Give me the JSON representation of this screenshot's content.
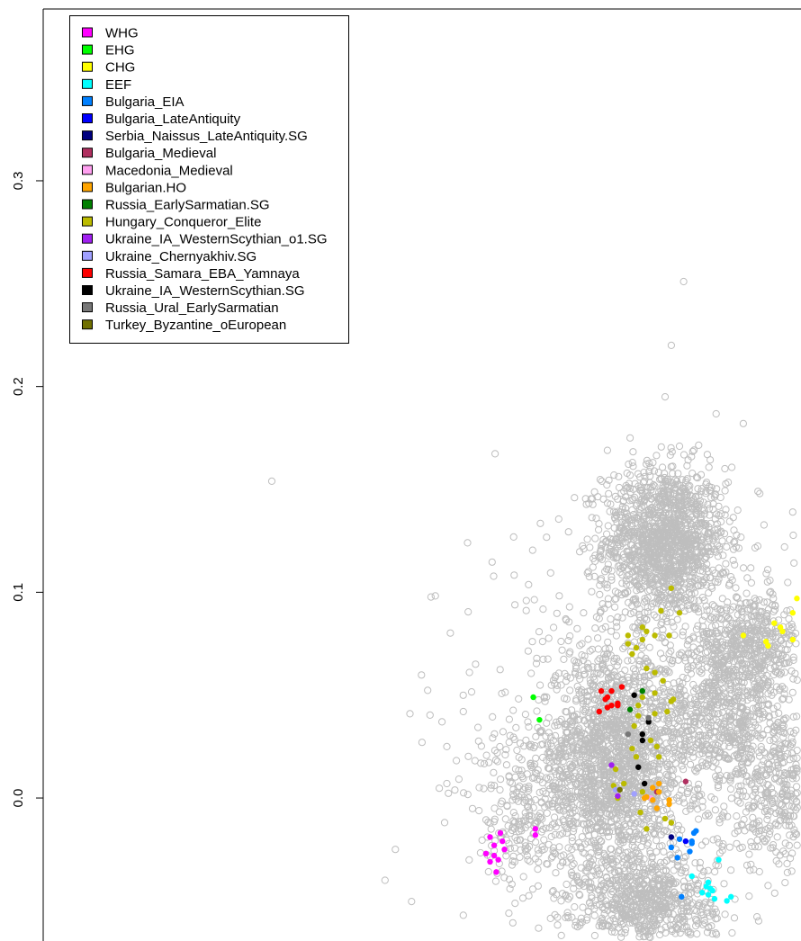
{
  "chart_data": {
    "type": "scatter",
    "title": "",
    "xlabel": "",
    "ylabel": "",
    "ylim": [
      -0.0695,
      0.3835
    ],
    "xlim": [
      0.0,
      0.368
    ],
    "y_ticks": [
      {
        "value": 0.0,
        "label": "0.0"
      },
      {
        "value": 0.1,
        "label": "0.1"
      },
      {
        "value": 0.2,
        "label": "0.2"
      },
      {
        "value": 0.3,
        "label": "0.3"
      }
    ],
    "grid": false,
    "legend_position": "top-left",
    "background_series": {
      "name": "reference samples",
      "color": "#BEBEBE",
      "marker": "open-circle",
      "clusters": [
        {
          "x": 0.302,
          "y": 0.125,
          "sx": 0.015,
          "sy": 0.018,
          "n": 1400
        },
        {
          "x": 0.276,
          "y": 0.016,
          "sx": 0.018,
          "sy": 0.028,
          "n": 1800
        },
        {
          "x": 0.294,
          "y": -0.052,
          "sx": 0.016,
          "sy": 0.012,
          "n": 700
        },
        {
          "x": 0.342,
          "y": 0.075,
          "sx": 0.014,
          "sy": 0.012,
          "n": 500
        },
        {
          "x": 0.33,
          "y": 0.04,
          "sx": 0.016,
          "sy": 0.018,
          "n": 600
        },
        {
          "x": 0.36,
          "y": 0.003,
          "sx": 0.018,
          "sy": 0.02,
          "n": 500
        },
        {
          "x": 0.233,
          "y": -0.008,
          "sx": 0.013,
          "sy": 0.022,
          "n": 220
        },
        {
          "x": 0.3,
          "y": 0.04,
          "sx": 0.055,
          "sy": 0.05,
          "n": 350
        }
      ],
      "outliers": [
        [
          0.133,
          0.356
        ],
        [
          0.111,
          0.154
        ],
        [
          0.311,
          0.251
        ],
        [
          0.305,
          0.22
        ],
        [
          0.302,
          0.195
        ],
        [
          0.34,
          0.182
        ],
        [
          0.309,
          0.171
        ],
        [
          0.274,
          0.169
        ],
        [
          0.285,
          0.175
        ],
        [
          0.258,
          0.146
        ],
        [
          0.207,
          0.061
        ],
        [
          0.204,
          0.042
        ],
        [
          0.196,
          0.025
        ],
        [
          0.196,
          0.007
        ],
        [
          0.171,
          -0.025
        ],
        [
          0.166,
          -0.04
        ],
        [
          0.204,
          -0.057
        ],
        [
          0.364,
          0.139
        ],
        [
          0.36,
          0.122
        ],
        [
          0.348,
          0.148
        ]
      ]
    },
    "series": [
      {
        "name": "WHG",
        "color": "#FF00FF",
        "points": [
          [
            0.217,
            -0.019
          ],
          [
            0.219,
            -0.023
          ],
          [
            0.222,
            -0.017
          ],
          [
            0.223,
            -0.021
          ],
          [
            0.219,
            -0.028
          ],
          [
            0.215,
            -0.027
          ],
          [
            0.221,
            -0.03
          ],
          [
            0.224,
            -0.025
          ],
          [
            0.239,
            -0.015
          ],
          [
            0.239,
            -0.018
          ],
          [
            0.22,
            -0.036
          ],
          [
            0.217,
            -0.031
          ]
        ]
      },
      {
        "name": "EHG",
        "color": "#00FF00",
        "points": [
          [
            0.238,
            0.049
          ],
          [
            0.241,
            0.038
          ]
        ]
      },
      {
        "name": "CHG",
        "color": "#FFFF00",
        "points": [
          [
            0.366,
            0.097
          ],
          [
            0.364,
            0.09
          ],
          [
            0.358,
            0.083
          ],
          [
            0.359,
            0.081
          ],
          [
            0.364,
            0.077
          ],
          [
            0.355,
            0.085
          ],
          [
            0.351,
            0.076
          ],
          [
            0.352,
            0.074
          ],
          [
            0.34,
            0.079
          ]
        ]
      },
      {
        "name": "EEF",
        "color": "#00FFFF",
        "points": [
          [
            0.328,
            -0.03
          ],
          [
            0.315,
            -0.038
          ],
          [
            0.324,
            -0.044
          ],
          [
            0.322,
            -0.043
          ],
          [
            0.325,
            -0.045
          ],
          [
            0.323,
            -0.047
          ],
          [
            0.326,
            -0.049
          ],
          [
            0.32,
            -0.046
          ],
          [
            0.332,
            -0.05
          ],
          [
            0.334,
            -0.048
          ],
          [
            0.323,
            -0.041
          ]
        ]
      },
      {
        "name": "Bulgaria_EIA",
        "color": "#0080FF",
        "points": [
          [
            0.317,
            -0.016
          ],
          [
            0.316,
            -0.017
          ],
          [
            0.309,
            -0.02
          ],
          [
            0.315,
            -0.021
          ],
          [
            0.315,
            -0.022
          ],
          [
            0.305,
            -0.024
          ],
          [
            0.314,
            -0.026
          ],
          [
            0.308,
            -0.029
          ],
          [
            0.31,
            -0.048
          ]
        ]
      },
      {
        "name": "Bulgaria_LateAntiquity",
        "color": "#0000FF",
        "points": [
          [
            0.312,
            -0.021
          ]
        ]
      },
      {
        "name": "Serbia_Naissus_LateAntiquity.SG",
        "color": "#000080",
        "points": [
          [
            0.305,
            -0.019
          ]
        ]
      },
      {
        "name": "Bulgaria_Medieval",
        "color": "#B03060",
        "points": [
          [
            0.312,
            0.008
          ],
          [
            0.298,
            0.003
          ]
        ]
      },
      {
        "name": "Macedonia_Medieval",
        "color": "#FFA0F0",
        "points": [
          [
            0.295,
            0.0
          ]
        ]
      },
      {
        "name": "Bulgarian.HO",
        "color": "#FFA500",
        "points": [
          [
            0.299,
            0.007
          ],
          [
            0.296,
            0.005
          ],
          [
            0.299,
            0.003
          ],
          [
            0.292,
            0.0
          ],
          [
            0.293,
            0.0005
          ],
          [
            0.296,
            -0.001
          ],
          [
            0.304,
            -0.001
          ],
          [
            0.304,
            -0.003
          ],
          [
            0.298,
            -0.005
          ]
        ]
      },
      {
        "name": "Russia_EarlySarmatian.SG",
        "color": "#008000",
        "points": [
          [
            0.291,
            0.052
          ],
          [
            0.285,
            0.043
          ]
        ]
      },
      {
        "name": "Hungary_Conqueror_Elite",
        "color": "#BBBB00",
        "points": [
          [
            0.305,
            0.102
          ],
          [
            0.3,
            0.091
          ],
          [
            0.309,
            0.09
          ],
          [
            0.291,
            0.083
          ],
          [
            0.293,
            0.081
          ],
          [
            0.297,
            0.079
          ],
          [
            0.284,
            0.079
          ],
          [
            0.304,
            0.079
          ],
          [
            0.284,
            0.075
          ],
          [
            0.291,
            0.077
          ],
          [
            0.288,
            0.073
          ],
          [
            0.286,
            0.07
          ],
          [
            0.293,
            0.063
          ],
          [
            0.297,
            0.061
          ],
          [
            0.301,
            0.057
          ],
          [
            0.291,
            0.049
          ],
          [
            0.297,
            0.051
          ],
          [
            0.305,
            0.047
          ],
          [
            0.306,
            0.048
          ],
          [
            0.289,
            0.045
          ],
          [
            0.297,
            0.041
          ],
          [
            0.303,
            0.042
          ],
          [
            0.289,
            0.04
          ],
          [
            0.287,
            0.035
          ],
          [
            0.295,
            0.028
          ],
          [
            0.298,
            0.025
          ],
          [
            0.286,
            0.024
          ],
          [
            0.288,
            0.02
          ],
          [
            0.299,
            0.02
          ],
          [
            0.278,
            0.014
          ],
          [
            0.282,
            0.007
          ],
          [
            0.277,
            0.006
          ],
          [
            0.279,
            0.0
          ],
          [
            0.291,
            0.003
          ],
          [
            0.29,
            -0.007
          ],
          [
            0.302,
            -0.01
          ],
          [
            0.305,
            -0.012
          ],
          [
            0.293,
            -0.015
          ]
        ]
      },
      {
        "name": "Ukraine_IA_WesternScythian_o1.SG",
        "color": "#A020F0",
        "points": [
          [
            0.276,
            0.016
          ],
          [
            0.279,
            0.001
          ]
        ]
      },
      {
        "name": "Ukraine_Chernyakhiv.SG",
        "color": "#A0A0FF",
        "points": [
          [
            0.278,
            0.004
          ],
          [
            0.287,
            0.002
          ]
        ]
      },
      {
        "name": "Russia_Samara_EBA_Yamnaya",
        "color": "#FF0000",
        "points": [
          [
            0.271,
            0.052
          ],
          [
            0.276,
            0.052
          ],
          [
            0.281,
            0.054
          ],
          [
            0.274,
            0.049
          ],
          [
            0.273,
            0.048
          ],
          [
            0.276,
            0.045
          ],
          [
            0.274,
            0.044
          ],
          [
            0.279,
            0.046
          ],
          [
            0.279,
            0.045
          ],
          [
            0.27,
            0.042
          ]
        ]
      },
      {
        "name": "Ukraine_IA_WesternScythian.SG",
        "color": "#000000",
        "points": [
          [
            0.287,
            0.05
          ],
          [
            0.294,
            0.037
          ],
          [
            0.291,
            0.031
          ],
          [
            0.291,
            0.028
          ],
          [
            0.289,
            0.015
          ],
          [
            0.292,
            0.007
          ]
        ]
      },
      {
        "name": "Russia_Ural_EarlySarmatian",
        "color": "#777777",
        "points": [
          [
            0.294,
            0.039
          ],
          [
            0.284,
            0.031
          ]
        ]
      },
      {
        "name": "Turkey_Byzantine_oEuropean",
        "color": "#707000",
        "points": [
          [
            0.28,
            0.004
          ]
        ]
      }
    ]
  }
}
